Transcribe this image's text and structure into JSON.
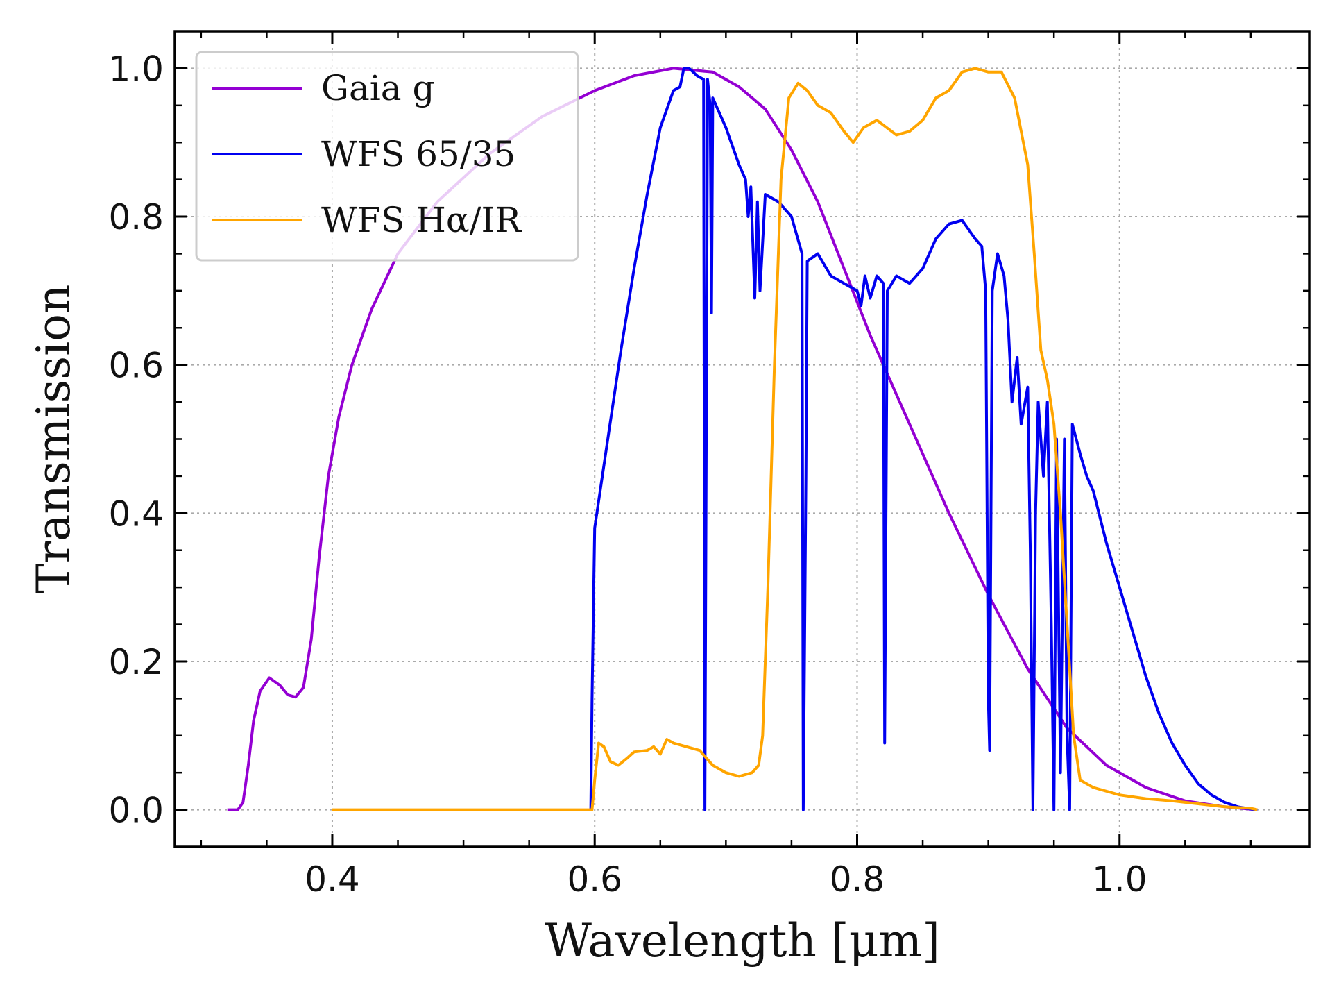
{
  "chart_data": {
    "type": "line",
    "title": "",
    "xlabel": "Wavelength [μm]",
    "ylabel": "Transmission",
    "xlim": [
      0.28,
      1.145
    ],
    "ylim": [
      -0.05,
      1.05
    ],
    "x_ticks": [
      0.4,
      0.6,
      0.8,
      1.0
    ],
    "x_tick_labels": [
      "0.4",
      "0.6",
      "0.8",
      "1.0"
    ],
    "y_ticks": [
      0.0,
      0.2,
      0.4,
      0.6,
      0.8,
      1.0
    ],
    "y_tick_labels": [
      "0.0",
      "0.2",
      "0.4",
      "0.6",
      "0.8",
      "1.0"
    ],
    "grid": true,
    "legend_position": "top-left",
    "series": [
      {
        "name": "Gaia g",
        "color": "#9400D3",
        "points": [
          [
            0.32,
            0
          ],
          [
            0.328,
            0
          ],
          [
            0.332,
            0.01
          ],
          [
            0.336,
            0.06
          ],
          [
            0.34,
            0.12
          ],
          [
            0.345,
            0.16
          ],
          [
            0.352,
            0.178
          ],
          [
            0.36,
            0.168
          ],
          [
            0.366,
            0.155
          ],
          [
            0.372,
            0.152
          ],
          [
            0.378,
            0.165
          ],
          [
            0.384,
            0.23
          ],
          [
            0.39,
            0.34
          ],
          [
            0.397,
            0.45
          ],
          [
            0.405,
            0.53
          ],
          [
            0.415,
            0.6
          ],
          [
            0.43,
            0.675
          ],
          [
            0.45,
            0.75
          ],
          [
            0.48,
            0.82
          ],
          [
            0.52,
            0.885
          ],
          [
            0.56,
            0.935
          ],
          [
            0.6,
            0.97
          ],
          [
            0.63,
            0.99
          ],
          [
            0.66,
            1.0
          ],
          [
            0.69,
            0.995
          ],
          [
            0.71,
            0.975
          ],
          [
            0.73,
            0.945
          ],
          [
            0.75,
            0.89
          ],
          [
            0.77,
            0.82
          ],
          [
            0.79,
            0.73
          ],
          [
            0.81,
            0.64
          ],
          [
            0.83,
            0.56
          ],
          [
            0.85,
            0.48
          ],
          [
            0.87,
            0.4
          ],
          [
            0.9,
            0.29
          ],
          [
            0.93,
            0.19
          ],
          [
            0.96,
            0.11
          ],
          [
            0.99,
            0.06
          ],
          [
            1.02,
            0.03
          ],
          [
            1.05,
            0.012
          ],
          [
            1.08,
            0.004
          ],
          [
            1.105,
            0
          ]
        ]
      },
      {
        "name": "WFS 65/35",
        "color": "#0000F0",
        "points": [
          [
            0.597,
            0
          ],
          [
            0.598,
            0.15
          ],
          [
            0.6,
            0.38
          ],
          [
            0.61,
            0.5
          ],
          [
            0.62,
            0.62
          ],
          [
            0.63,
            0.73
          ],
          [
            0.64,
            0.83
          ],
          [
            0.65,
            0.92
          ],
          [
            0.66,
            0.97
          ],
          [
            0.665,
            0.975
          ],
          [
            0.668,
            1.0
          ],
          [
            0.672,
            1.0
          ],
          [
            0.678,
            0.99
          ],
          [
            0.683,
            0.985
          ],
          [
            0.684,
            0.0
          ],
          [
            0.686,
            0.985
          ],
          [
            0.688,
            0.95
          ],
          [
            0.689,
            0.67
          ],
          [
            0.69,
            0.96
          ],
          [
            0.7,
            0.92
          ],
          [
            0.71,
            0.87
          ],
          [
            0.715,
            0.85
          ],
          [
            0.717,
            0.8
          ],
          [
            0.719,
            0.84
          ],
          [
            0.722,
            0.69
          ],
          [
            0.724,
            0.82
          ],
          [
            0.726,
            0.7
          ],
          [
            0.73,
            0.83
          ],
          [
            0.74,
            0.82
          ],
          [
            0.75,
            0.8
          ],
          [
            0.758,
            0.75
          ],
          [
            0.759,
            0.0
          ],
          [
            0.761,
            0.45
          ],
          [
            0.762,
            0.74
          ],
          [
            0.77,
            0.75
          ],
          [
            0.78,
            0.72
          ],
          [
            0.79,
            0.71
          ],
          [
            0.8,
            0.7
          ],
          [
            0.803,
            0.68
          ],
          [
            0.806,
            0.72
          ],
          [
            0.81,
            0.69
          ],
          [
            0.815,
            0.72
          ],
          [
            0.82,
            0.71
          ],
          [
            0.821,
            0.09
          ],
          [
            0.823,
            0.7
          ],
          [
            0.83,
            0.72
          ],
          [
            0.84,
            0.71
          ],
          [
            0.85,
            0.73
          ],
          [
            0.86,
            0.77
          ],
          [
            0.87,
            0.79
          ],
          [
            0.88,
            0.795
          ],
          [
            0.89,
            0.77
          ],
          [
            0.895,
            0.76
          ],
          [
            0.898,
            0.7
          ],
          [
            0.9,
            0.15
          ],
          [
            0.901,
            0.08
          ],
          [
            0.903,
            0.7
          ],
          [
            0.907,
            0.75
          ],
          [
            0.912,
            0.72
          ],
          [
            0.915,
            0.66
          ],
          [
            0.918,
            0.55
          ],
          [
            0.922,
            0.61
          ],
          [
            0.925,
            0.52
          ],
          [
            0.93,
            0.57
          ],
          [
            0.932,
            0.35
          ],
          [
            0.934,
            0.0
          ],
          [
            0.936,
            0.4
          ],
          [
            0.938,
            0.55
          ],
          [
            0.942,
            0.45
          ],
          [
            0.945,
            0.55
          ],
          [
            0.948,
            0.25
          ],
          [
            0.95,
            0.0
          ],
          [
            0.952,
            0.5
          ],
          [
            0.955,
            0.05
          ],
          [
            0.958,
            0.5
          ],
          [
            0.96,
            0.1
          ],
          [
            0.962,
            0.0
          ],
          [
            0.964,
            0.52
          ],
          [
            0.97,
            0.48
          ],
          [
            0.975,
            0.45
          ],
          [
            0.98,
            0.43
          ],
          [
            0.99,
            0.36
          ],
          [
            1.0,
            0.3
          ],
          [
            1.01,
            0.24
          ],
          [
            1.02,
            0.18
          ],
          [
            1.03,
            0.13
          ],
          [
            1.04,
            0.09
          ],
          [
            1.05,
            0.06
          ],
          [
            1.06,
            0.035
          ],
          [
            1.07,
            0.02
          ],
          [
            1.08,
            0.01
          ],
          [
            1.09,
            0.004
          ],
          [
            1.1,
            0.001
          ],
          [
            1.105,
            0
          ]
        ]
      },
      {
        "name": "WFS Hα/IR",
        "color": "#FFA500",
        "points": [
          [
            0.4,
            0
          ],
          [
            0.598,
            0
          ],
          [
            0.6,
            0.04
          ],
          [
            0.603,
            0.09
          ],
          [
            0.607,
            0.085
          ],
          [
            0.612,
            0.065
          ],
          [
            0.618,
            0.06
          ],
          [
            0.625,
            0.07
          ],
          [
            0.63,
            0.078
          ],
          [
            0.64,
            0.08
          ],
          [
            0.645,
            0.085
          ],
          [
            0.65,
            0.075
          ],
          [
            0.655,
            0.095
          ],
          [
            0.66,
            0.09
          ],
          [
            0.67,
            0.085
          ],
          [
            0.68,
            0.08
          ],
          [
            0.69,
            0.06
          ],
          [
            0.7,
            0.05
          ],
          [
            0.71,
            0.045
          ],
          [
            0.72,
            0.05
          ],
          [
            0.725,
            0.06
          ],
          [
            0.728,
            0.1
          ],
          [
            0.732,
            0.3
          ],
          [
            0.737,
            0.6
          ],
          [
            0.742,
            0.85
          ],
          [
            0.748,
            0.96
          ],
          [
            0.755,
            0.98
          ],
          [
            0.762,
            0.97
          ],
          [
            0.77,
            0.95
          ],
          [
            0.78,
            0.94
          ],
          [
            0.79,
            0.915
          ],
          [
            0.797,
            0.9
          ],
          [
            0.805,
            0.92
          ],
          [
            0.815,
            0.93
          ],
          [
            0.83,
            0.91
          ],
          [
            0.84,
            0.915
          ],
          [
            0.85,
            0.93
          ],
          [
            0.86,
            0.96
          ],
          [
            0.87,
            0.97
          ],
          [
            0.88,
            0.995
          ],
          [
            0.89,
            1.0
          ],
          [
            0.9,
            0.995
          ],
          [
            0.91,
            0.995
          ],
          [
            0.92,
            0.96
          ],
          [
            0.93,
            0.87
          ],
          [
            0.935,
            0.75
          ],
          [
            0.94,
            0.62
          ],
          [
            0.945,
            0.58
          ],
          [
            0.95,
            0.52
          ],
          [
            0.955,
            0.4
          ],
          [
            0.96,
            0.25
          ],
          [
            0.965,
            0.1
          ],
          [
            0.97,
            0.04
          ],
          [
            0.98,
            0.03
          ],
          [
            1.0,
            0.02
          ],
          [
            1.02,
            0.015
          ],
          [
            1.04,
            0.012
          ],
          [
            1.06,
            0.008
          ],
          [
            1.08,
            0.004
          ],
          [
            1.1,
            0.002
          ],
          [
            1.105,
            0
          ]
        ]
      }
    ]
  }
}
